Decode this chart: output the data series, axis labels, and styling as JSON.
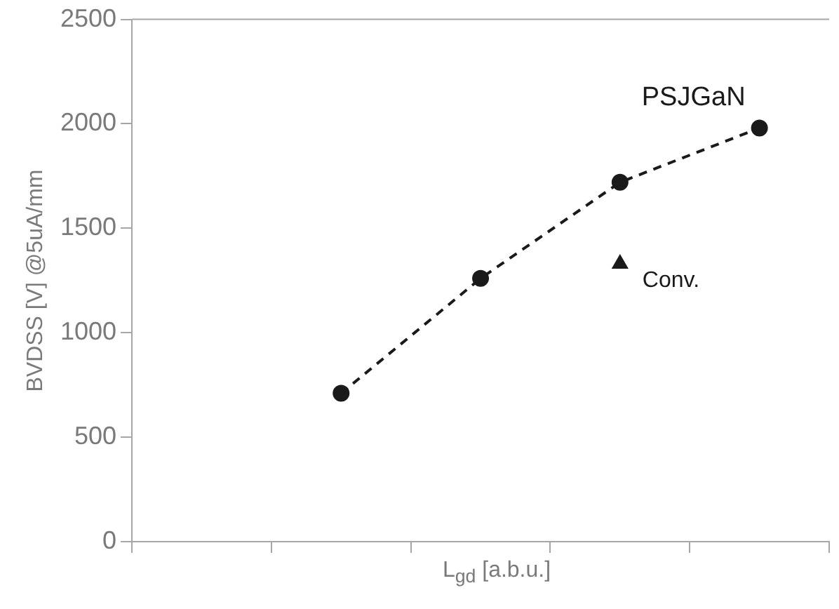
{
  "chart_data": {
    "type": "scatter",
    "xlabel": "L$_{gd}$ [a.b.u.]",
    "ylabel": "BVDSS  [V] @5uA/mm",
    "categories": [
      null,
      null,
      null,
      null,
      null
    ],
    "series": [
      {
        "name": "PSJGaN",
        "type": "line",
        "color": "#1a1a1a",
        "marker": "circle",
        "line_style": "dashed",
        "values": [
          null,
          710,
          1260,
          1720,
          1980
        ]
      },
      {
        "name": "Conv.",
        "color": "#1a1a1a",
        "marker": "triangle",
        "values": [
          null,
          null,
          null,
          1330,
          null
        ]
      }
    ],
    "ylim": [
      0,
      2500
    ],
    "yticks": [
      0,
      500,
      1000,
      1500,
      2000,
      2500
    ],
    "grid": false,
    "legend": false,
    "tick_labels": "y"
  }
}
